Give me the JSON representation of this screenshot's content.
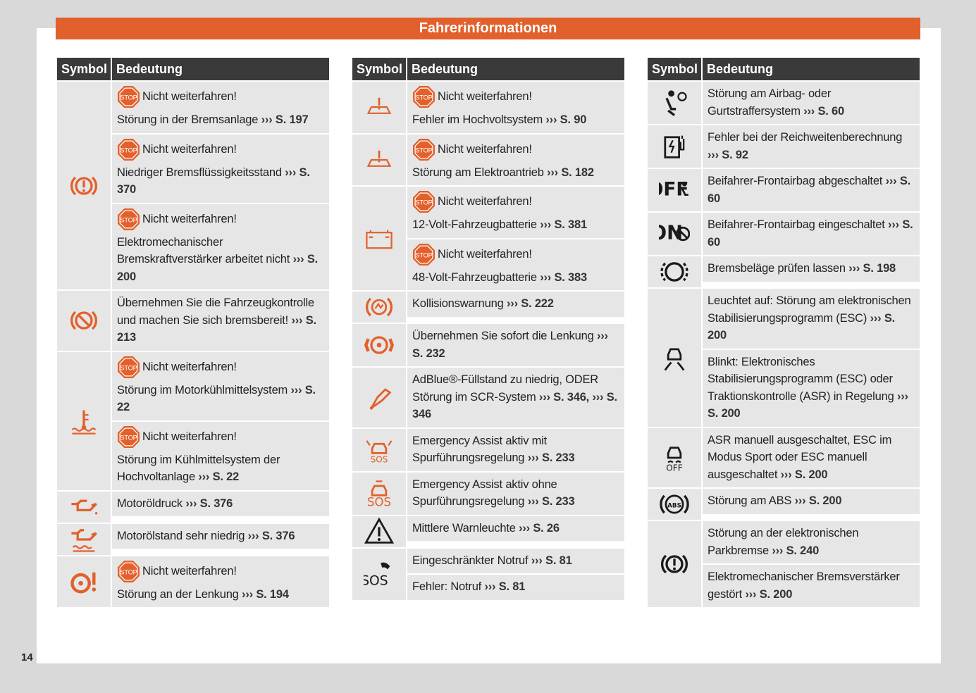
{
  "header": {
    "title": "Fahrerinformationen"
  },
  "page_number": "14",
  "stop_label": "STOP",
  "tables": [
    {
      "header": [
        "Symbol",
        "Bedeutung"
      ],
      "groups": [
        {
          "entries": [
            {
              "warning": "Nicht weiterfahren!",
              "text": "Störung in der Bremsanlage",
              "ref": "››› S. 197"
            },
            {
              "warning": "Nicht weiterfahren!",
              "text": "Niedriger Bremsflüssigkeitsstand",
              "ref": "››› S. 370"
            },
            {
              "warning": "Nicht weiterfahren!",
              "text": "Elektromechanischer Bremskraftverstärker arbeitet nicht",
              "ref": "››› S. 200"
            }
          ]
        },
        {
          "entries": [
            {
              "text": "Übernehmen Sie die Fahrzeugkontrolle und machen Sie sich bremsbereit!",
              "ref": "››› S. 213"
            }
          ]
        },
        {
          "entries": [
            {
              "warning": "Nicht weiterfahren!",
              "text": "Störung im Motorkühlmittelsystem",
              "ref": "››› S. 22"
            },
            {
              "warning": "Nicht weiterfahren!",
              "text": "Störung im Kühlmittelsystem der Hochvoltanlage",
              "ref": "››› S. 22"
            }
          ]
        },
        {
          "entries": [
            {
              "text": "Motoröldruck",
              "ref": "››› S. 376"
            }
          ]
        },
        {
          "entries": [
            {
              "text": "Motorölstand sehr niedrig",
              "ref": "››› S. 376"
            }
          ]
        },
        {
          "entries": [
            {
              "warning": "Nicht weiterfahren!",
              "text": "Störung an der Lenkung",
              "ref": "››› S. 194"
            }
          ]
        }
      ]
    },
    {
      "header": [
        "Symbol",
        "Bedeutung"
      ],
      "groups": [
        {
          "entries": [
            {
              "warning": "Nicht weiterfahren!",
              "text": "Fehler im Hochvoltsystem",
              "ref": "››› S. 90"
            }
          ]
        },
        {
          "entries": [
            {
              "warning": "Nicht weiterfahren!",
              "text": "Störung am Elektroantrieb",
              "ref": "››› S. 182"
            }
          ]
        },
        {
          "entries": [
            {
              "warning": "Nicht weiterfahren!",
              "text": "12-Volt-Fahrzeugbatterie",
              "ref": "››› S. 381"
            },
            {
              "warning": "Nicht weiterfahren!",
              "text": "48-Volt-Fahrzeugbatterie",
              "ref": "››› S. 383"
            }
          ]
        },
        {
          "entries": [
            {
              "text": "Kollisionswarnung",
              "ref": "››› S. 222"
            }
          ]
        },
        {
          "entries": [
            {
              "text": "Übernehmen Sie sofort die Lenkung",
              "ref": "››› S. 232"
            }
          ]
        },
        {
          "entries": [
            {
              "text": "AdBlue®-Füllstand zu niedrig, ODER Störung im SCR-System",
              "ref": "››› S. 346, ››› S. 346"
            }
          ]
        },
        {
          "icon_text": "SOS",
          "entries": [
            {
              "text": "Emergency Assist aktiv mit Spurführungsregelung",
              "ref": "››› S. 233"
            }
          ]
        },
        {
          "icon_text": "SOS",
          "entries": [
            {
              "text": "Emergency Assist aktiv ohne Spurführungsregelung",
              "ref": "››› S. 233"
            }
          ]
        },
        {
          "entries": [
            {
              "text": "Mittlere Warnleuchte",
              "ref": "››› S. 26"
            }
          ]
        },
        {
          "icon_text": "SOS",
          "entries": [
            {
              "text": "Eingeschränkter Notruf",
              "ref": "››› S. 81"
            },
            {
              "text": "Fehler: Notruf",
              "ref": "››› S. 81"
            }
          ]
        }
      ]
    },
    {
      "header": [
        "Symbol",
        "Bedeutung"
      ],
      "groups": [
        {
          "entries": [
            {
              "text": "Störung am Airbag- oder Gurtstraffersystem",
              "ref": "››› S. 60"
            }
          ]
        },
        {
          "entries": [
            {
              "text": "Fehler bei der Reichweitenberechnung",
              "ref": "››› S. 92"
            }
          ]
        },
        {
          "icon_text": "OFF",
          "entries": [
            {
              "text": "Beifahrer-Frontairbag abgeschaltet",
              "ref": "››› S. 60"
            }
          ]
        },
        {
          "icon_text": "ON",
          "entries": [
            {
              "text": "Beifahrer-Frontairbag eingeschaltet",
              "ref": "››› S. 60"
            }
          ]
        },
        {
          "entries": [
            {
              "text": "Bremsbeläge prüfen lassen",
              "ref": "››› S. 198"
            }
          ]
        },
        {
          "entries": [
            {
              "text": "Leuchtet auf: Störung am elektronischen Stabilisierungsprogramm (ESC)",
              "ref": "››› S. 200"
            },
            {
              "text": "Blinkt: Elektronisches Stabilisierungsprogramm (ESC) oder Traktionskontrolle (ASR) in Regelung",
              "ref": "››› S. 200"
            }
          ]
        },
        {
          "icon_text": "OFF",
          "entries": [
            {
              "text": "ASR manuell ausgeschaltet, ESC im Modus Sport oder ESC manuell ausgeschaltet",
              "ref": "››› S. 200"
            }
          ]
        },
        {
          "icon_text": "ABS",
          "entries": [
            {
              "text": "Störung am ABS",
              "ref": "››› S. 200"
            }
          ]
        },
        {
          "entries": [
            {
              "text": "Störung an der elektronischen Parkbremse",
              "ref": "››› S. 240"
            },
            {
              "text": "Elektromechanischer Bremsverstärker gestört",
              "ref": "››› S. 200"
            }
          ]
        }
      ]
    }
  ]
}
